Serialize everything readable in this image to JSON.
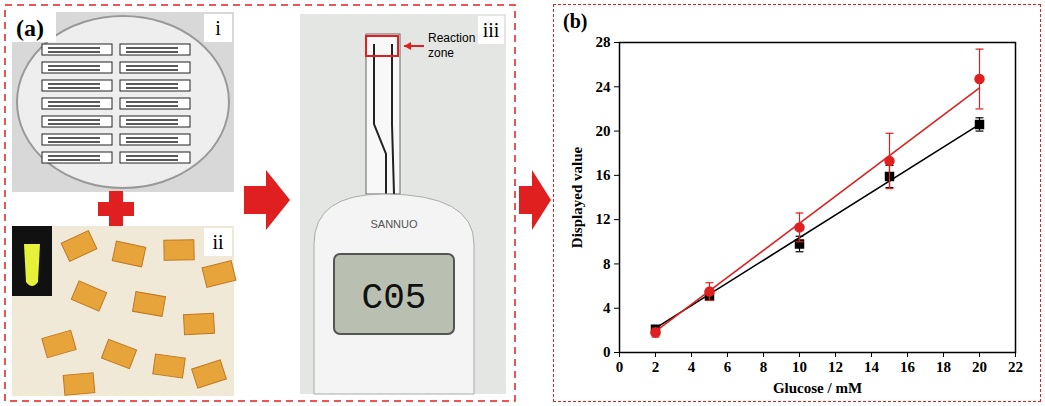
{
  "panel_a": {
    "letter": "(a)",
    "sub_labels": [
      "i",
      "ii",
      "iii"
    ],
    "annotation": "Reaction zone",
    "meter_brand": "SANNUO",
    "meter_display": "C05"
  },
  "chart_data": {
    "type": "scatter",
    "panel_label": "(b)",
    "xlabel": "Glucose / mM",
    "ylabel": "Displayed value",
    "x": [
      2,
      5,
      10,
      15,
      20
    ],
    "series": [
      {
        "color": "#000000",
        "marker": "square",
        "values": [
          2.1,
          5.1,
          9.8,
          15.9,
          20.6
        ],
        "errors": [
          0.3,
          0.3,
          0.7,
          1.0,
          0.6
        ],
        "fit": {
          "x": [
            2,
            20
          ],
          "values": [
            2.2,
            20.6
          ]
        }
      },
      {
        "color": "#e02020",
        "marker": "circle",
        "values": [
          1.8,
          5.5,
          11.3,
          17.3,
          24.7
        ],
        "errors": [
          0.4,
          0.8,
          1.3,
          2.5,
          2.7
        ],
        "fit": {
          "x": [
            2,
            20
          ],
          "values": [
            1.9,
            23.9
          ]
        }
      }
    ],
    "xlim": [
      0,
      22
    ],
    "xticks": [
      0,
      2,
      4,
      6,
      8,
      10,
      12,
      14,
      16,
      18,
      20,
      22
    ],
    "ylim": [
      0,
      28
    ],
    "yticks": [
      0,
      4,
      8,
      12,
      16,
      20,
      24,
      28
    ],
    "grid": false
  }
}
